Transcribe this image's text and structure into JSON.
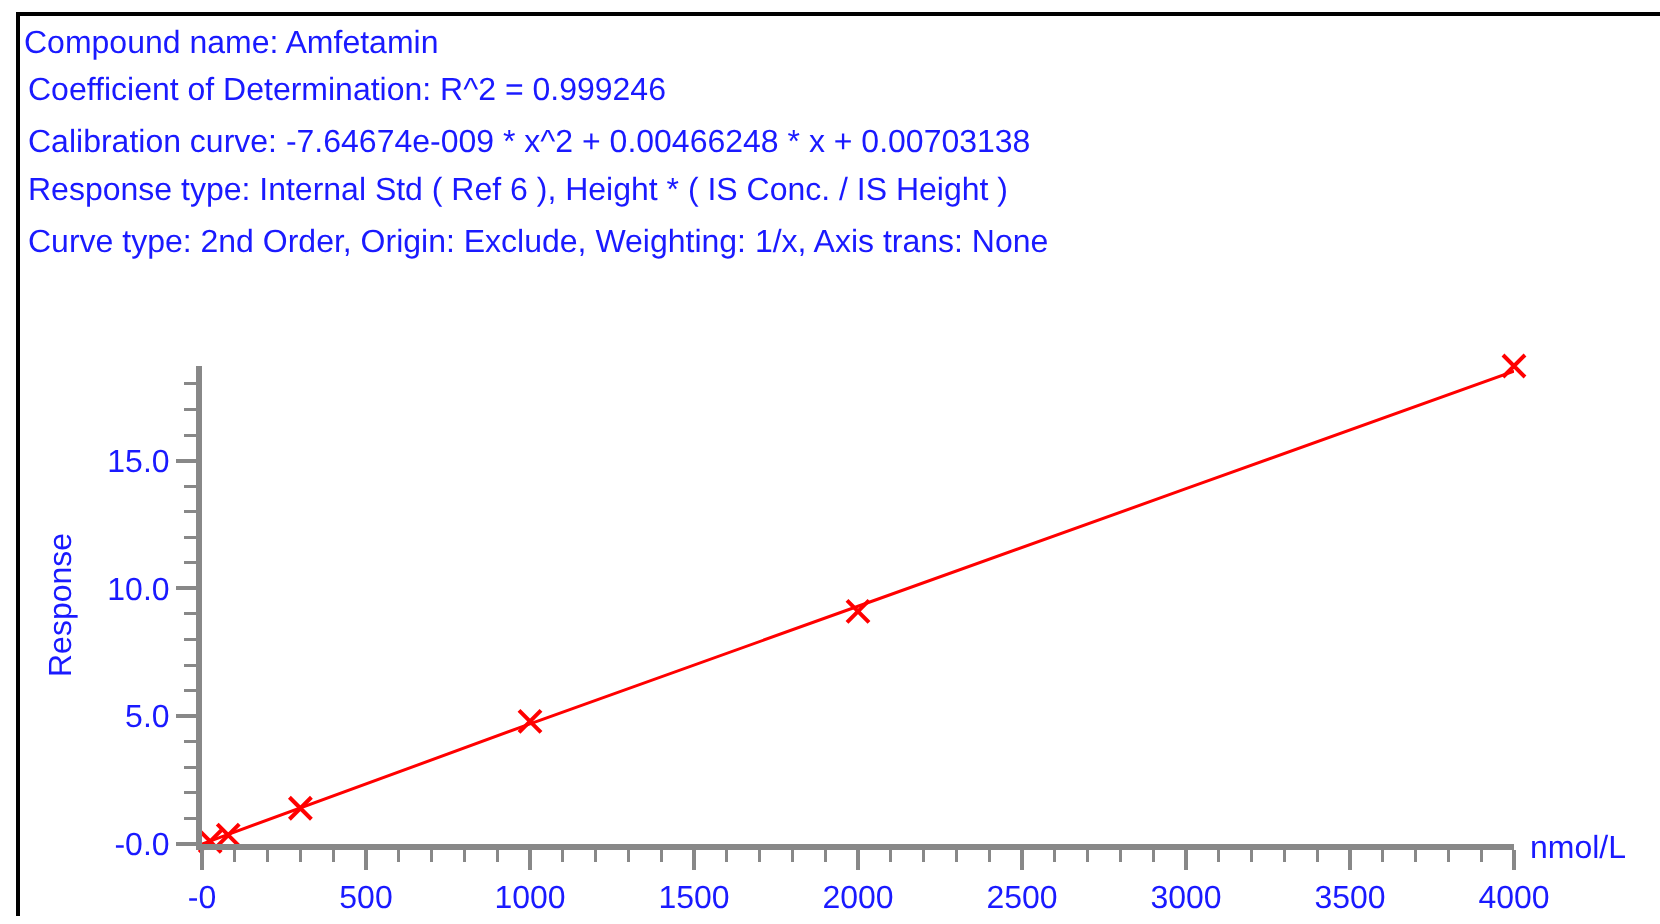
{
  "chart_data": {
    "type": "scatter",
    "title": "Compound name: Amfetamin",
    "annotations": [
      "Coefficient of Determination: R^2 = 0.999246",
      "Calibration curve: -7.64674e-009 * x^2 + 0.00466248 * x + 0.00703138",
      "Response type: Internal Std ( Ref 6 ), Height * ( IS Conc. / IS Height )",
      "Curve type: 2nd Order, Origin: Exclude, Weighting: 1/x, Axis trans: None"
    ],
    "xlabel": "nmol/L",
    "ylabel": "Response",
    "series": [
      {
        "type": "line",
        "color": "#ff0000",
        "marker": "none",
        "line_style": "solid",
        "x": [
          0,
          1000,
          2000,
          3000,
          4000
        ],
        "values": [
          0.0,
          4.7,
          9.3,
          13.9,
          18.5
        ]
      },
      {
        "type": "scatter",
        "color": "#ff0000",
        "marker": "cross",
        "x": [
          25,
          80,
          300,
          1000,
          2000,
          4000
        ],
        "values": [
          0.1,
          0.35,
          1.4,
          4.8,
          9.1,
          18.7
        ]
      }
    ],
    "xlim": [
      0,
      4000
    ],
    "ylim": [
      0,
      18.7
    ],
    "xticks": [
      {
        "value": 0,
        "label": "-0"
      },
      500,
      1000,
      1500,
      2000,
      2500,
      3000,
      3500,
      4000
    ],
    "yticks": [
      {
        "value": 0,
        "label": "-0.0"
      },
      {
        "value": 5,
        "label": "5.0"
      },
      {
        "value": 10,
        "label": "10.0"
      },
      {
        "value": 15,
        "label": "15.0"
      }
    ],
    "grid": false
  }
}
